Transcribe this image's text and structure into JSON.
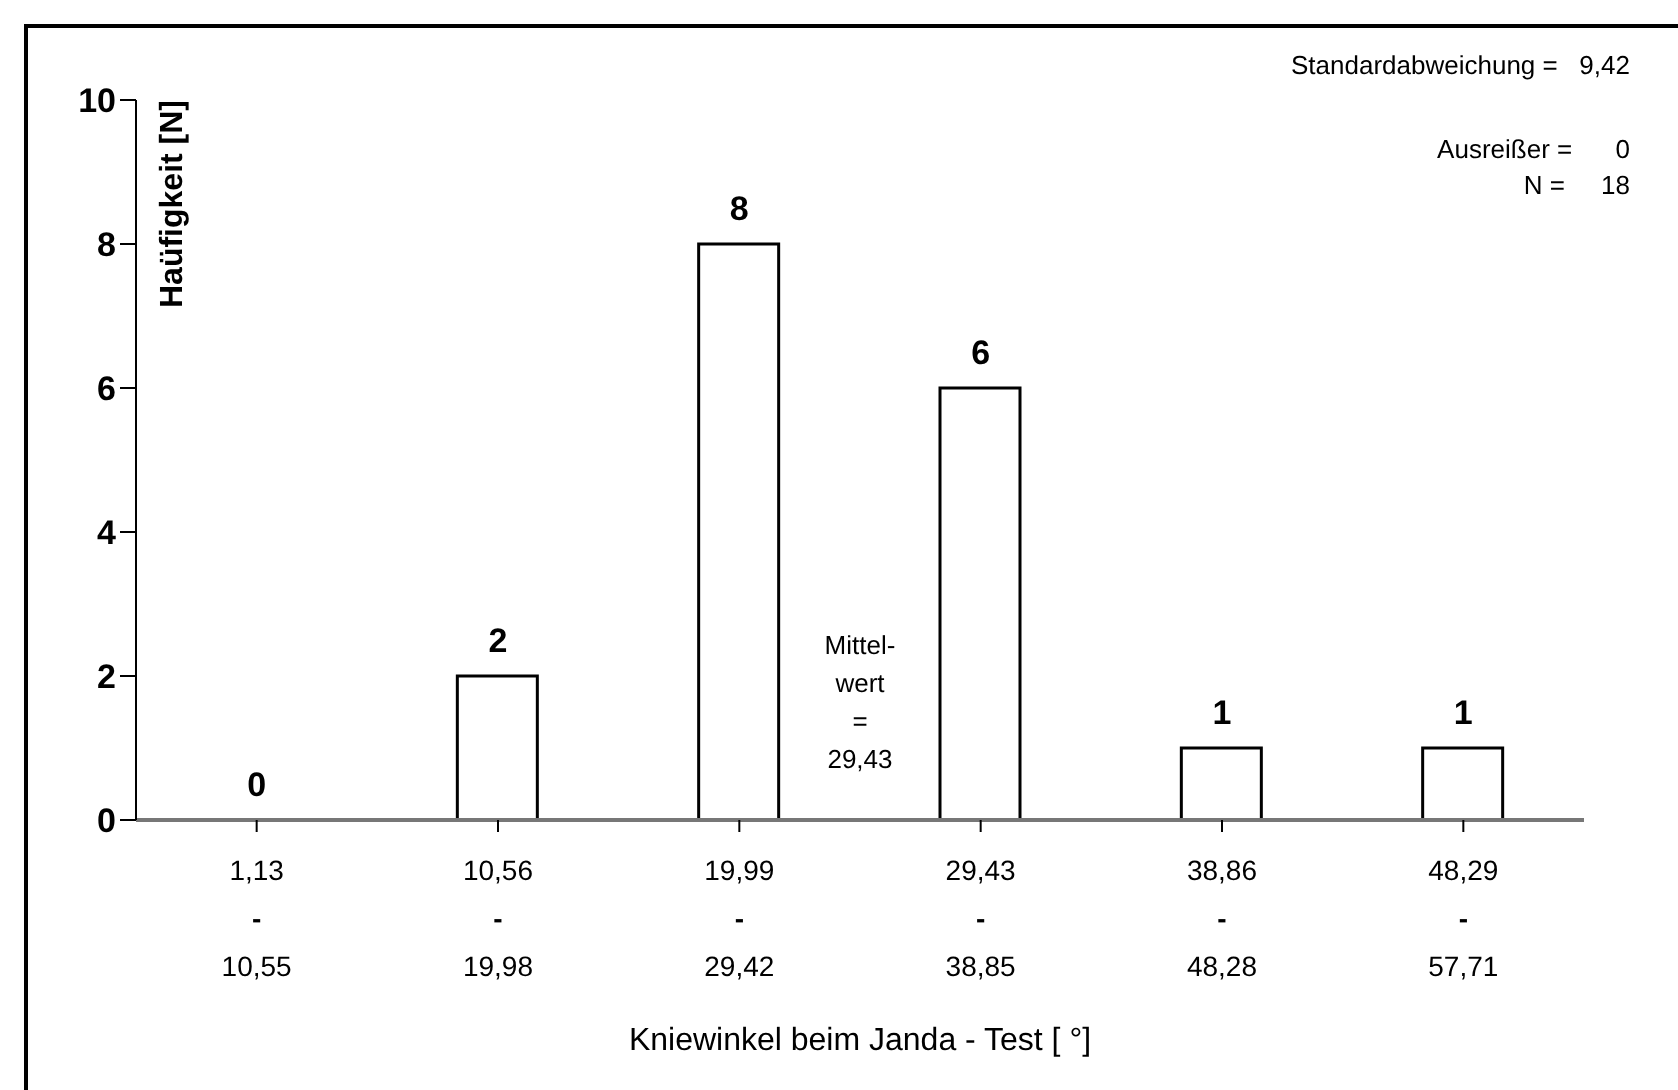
{
  "chart_data": {
    "type": "bar",
    "xlabel": "Kniewinkel beim Janda - Test [ °]",
    "ylabel": "Haüfigkeit [N]",
    "categories": [
      "1,13\n-\n10,55",
      "10,56\n-\n19,98",
      "19,99\n-\n29,42",
      "29,43\n-\n38,85",
      "38,86\n-\n48,28",
      "48,29\n-\n57,71"
    ],
    "values": [
      0,
      2,
      8,
      6,
      1,
      1
    ],
    "color": "#ffffff",
    "data_labels": true,
    "ylim": [
      0,
      10
    ],
    "yticks": [
      0,
      2,
      4,
      6,
      8,
      10
    ],
    "grid": false,
    "legend": false,
    "annotations": [
      "Standardabweichung =   9,42",
      "Ausreißer =      0",
      "N =     18",
      "Mittel-\nwert\n=\n29,43"
    ]
  }
}
